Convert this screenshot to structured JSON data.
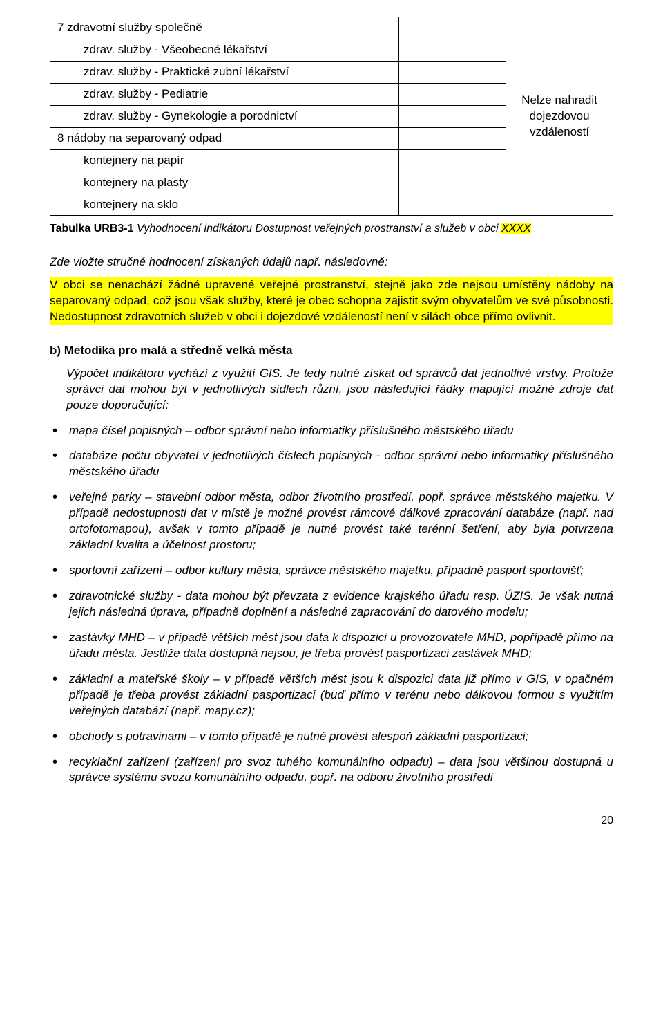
{
  "table": {
    "col2_rowspan_text": "Nelze nahradit dojezdovou vzdáleností",
    "rows": [
      {
        "label": "7 zdravotní služby společně",
        "indent": false
      },
      {
        "label": "zdrav. služby - Všeobecné lékařství",
        "indent": true
      },
      {
        "label": "zdrav. služby - Praktické zubní lékařství",
        "indent": true
      },
      {
        "label": "zdrav. služby - Pediatrie",
        "indent": true
      },
      {
        "label": "zdrav. služby - Gynekologie a porodnictví",
        "indent": true
      },
      {
        "label": "8 nádoby na separovaný odpad",
        "indent": false
      },
      {
        "label": "kontejnery na papír",
        "indent": true
      },
      {
        "label": "kontejnery na plasty",
        "indent": true
      },
      {
        "label": "kontejnery na sklo",
        "indent": true
      }
    ]
  },
  "caption": {
    "bold": "Tabulka URB3-1",
    "italic_before": "Vyhodnocení indikátoru Dostupnost veřejných prostranství a služeb v obci ",
    "highlight": "XXXX"
  },
  "intro": "Zde vložte stručné hodnocení získaných údajů např. následovně:",
  "highlight_para": "V obci se nenachází žádné upravené veřejné prostranství, stejně jako zde nejsou umístěny nádoby na separovaný odpad, což jsou však služby, které je obec schopna zajistit svým obyvatelům ve své působnosti. Nedostupnost zdravotních služeb v obci i dojezdové vzdáleností není v silách obce přímo ovlivnit.",
  "section_heading": "b) Metodika pro malá a středně velká města",
  "body_text": "Výpočet indikátoru vychází z využití GIS. Je tedy nutné získat od správců dat jednotlivé vrstvy. Protože správci dat mohou být v jednotlivých sídlech různí, jsou následující řádky mapující možné zdroje dat pouze doporučující:",
  "bullets": [
    "mapa čísel popisných – odbor správní nebo informatiky příslušného městského úřadu",
    "databáze počtu obyvatel v jednotlivých číslech popisných - odbor správní nebo informatiky příslušného městského úřadu",
    "veřejné parky – stavební odbor města, odbor životního prostředí, popř. správce městského majetku. V případě nedostupnosti dat v místě je možné provést rámcové dálkové zpracování databáze (např. nad ortofotomapou), avšak v tomto případě je nutné provést také terénní šetření, aby byla potvrzena základní kvalita a účelnost prostoru;",
    "sportovní zařízení – odbor kultury města, správce městského majetku, případně pasport sportovišť;",
    "zdravotnické služby - data mohou být převzata z evidence krajského úřadu resp. ÚZIS. Je však nutná jejich následná úprava, případně doplnění a následné zapracování do datového modelu;",
    "zastávky MHD – v případě větších měst jsou data k dispozici u provozovatele MHD, popřípadě přímo na úřadu města. Jestliže data dostupná nejsou, je třeba provést pasportizaci zastávek MHD;",
    "základní a mateřské školy – v případě větších měst jsou k dispozici data již přímo v GIS, v opačném případě je třeba provést základní pasportizaci (buď přímo v terénu nebo dálkovou formou s využitím veřejných databází (např. mapy.cz);",
    "obchody s potravinami – v tomto případě je nutné provést alespoň základní pasportizaci;",
    "recyklační zařízení (zařízení pro svoz tuhého komunálního odpadu) – data jsou většinou dostupná u správce systému svozu komunálního odpadu, popř. na odboru životního prostředí"
  ],
  "page_number": "20",
  "colors": {
    "highlight": "#ffff00",
    "text": "#000000",
    "background": "#ffffff",
    "border": "#000000"
  }
}
